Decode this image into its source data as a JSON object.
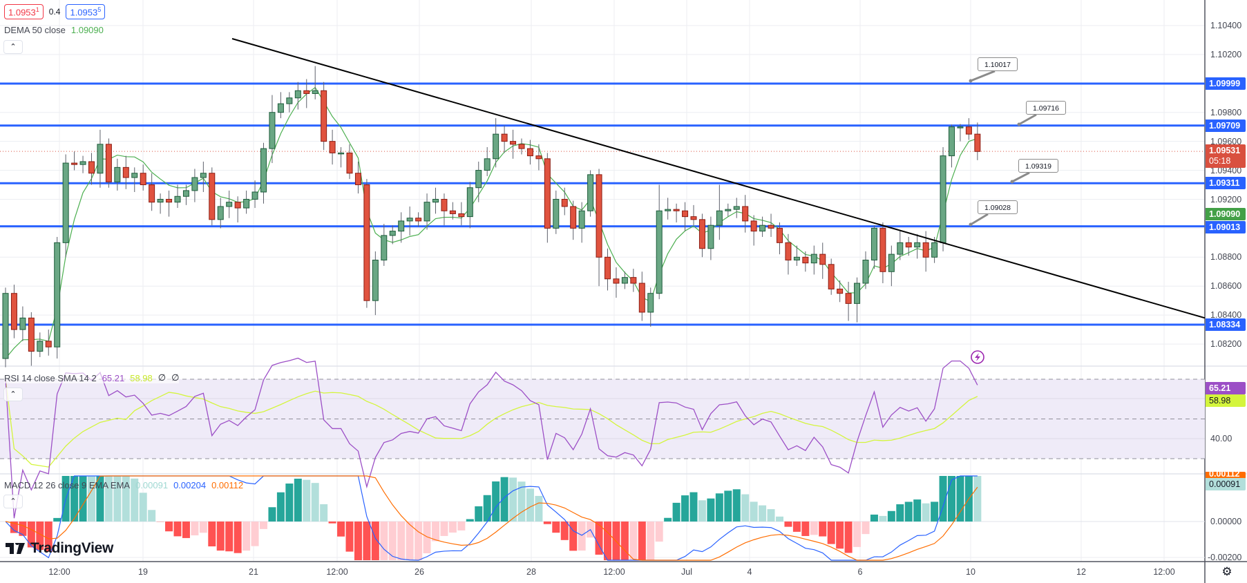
{
  "header": {
    "bid": {
      "main": "1.0953",
      "pip": "1"
    },
    "spread": "0.4",
    "ask": {
      "main": "1.0953",
      "pip": "5"
    },
    "dema_label": "DEMA 50 close",
    "dema_value": "1.09090"
  },
  "rsi_legend": {
    "label": "RSI 14 close SMA 14 2",
    "rsi": "65.21",
    "sma": "58.98",
    "extra1": "∅",
    "extra2": "∅"
  },
  "macd_legend": {
    "label": "MACD 12 26 close 9 EMA EMA",
    "hist": "0.00091",
    "macd": "0.00204",
    "signal": "0.00112"
  },
  "price_axis": [
    "1.10400",
    "1.10200",
    "1.09800",
    "1.09600",
    "1.09400",
    "1.09200",
    "1.08800",
    "1.08600",
    "1.08400",
    "1.08200"
  ],
  "price_badges": {
    "r1": "1.09999",
    "r2": "1.09709",
    "last": "1.09531",
    "countdown": "05:18",
    "s1": "1.09311",
    "dema": "1.09090",
    "s2": "1.09013",
    "s3": "1.08334"
  },
  "rsi_axis": {
    "level": "40.00",
    "rsi_badge": "65.21",
    "sma_badge": "58.98"
  },
  "macd_axis": {
    "signal_badge": "0.00112",
    "hist_badge": "0.00091",
    "zero": "0.00000",
    "low": "-0.00200"
  },
  "time_axis": [
    "12:00",
    "19",
    "21",
    "12:00",
    "26",
    "28",
    "12:00",
    "Jul",
    "4",
    "6",
    "10",
    "12",
    "12:00"
  ],
  "callouts": [
    "1.10017",
    "1.09716",
    "1.09319",
    "1.09028"
  ],
  "brand": "TradingView",
  "colors": {
    "up": "#6aa784",
    "up_border": "#1d5b3a",
    "down": "#e0533f",
    "down_border": "#8b1c12",
    "level": "#2962ff",
    "trend": "#000000",
    "dema": "#4caf50",
    "rsi": "#9c4fc6",
    "rsi_sma": "#d4f53c",
    "macd": "#2962ff",
    "signal": "#ff6d00",
    "hist_up_strong": "#26a69a",
    "hist_up_weak": "#b2dfdb",
    "hist_dn_strong": "#ff5252",
    "hist_dn_weak": "#ffcdd2",
    "last": "#d9503f"
  },
  "chart_data": {
    "type": "candlestick",
    "symbol_timeframe": "4h",
    "first_open": 1.081,
    "closes": [
      1.0855,
      1.083,
      1.0838,
      1.0815,
      1.0822,
      1.0818,
      1.089,
      1.0945,
      1.0944,
      1.0946,
      1.0938,
      1.0958,
      1.0932,
      1.0942,
      1.0935,
      1.0938,
      1.093,
      1.0918,
      1.092,
      1.0918,
      1.0922,
      1.0926,
      1.0935,
      1.0938,
      1.0906,
      1.0915,
      1.0918,
      1.0914,
      1.092,
      1.0925,
      1.0955,
      1.098,
      1.0986,
      1.099,
      1.0995,
      1.0993,
      1.0995,
      1.096,
      1.0952,
      1.0952,
      1.0938,
      1.093,
      1.085,
      1.0878,
      1.0895,
      1.0898,
      1.0905,
      1.0907,
      1.0905,
      1.0918,
      1.092,
      1.0912,
      1.091,
      1.0908,
      1.0928,
      1.094,
      1.0948,
      1.0965,
      1.096,
      1.0958,
      1.0955,
      1.095,
      1.0948,
      1.09,
      1.092,
      1.0915,
      1.09,
      1.0912,
      1.0937,
      1.088,
      1.0865,
      1.0862,
      1.0866,
      1.0862,
      1.0842,
      1.0855,
      1.0912,
      1.0913,
      1.0912,
      1.0908,
      1.0906,
      1.0886,
      1.0902,
      1.0912,
      1.0913,
      1.0915,
      1.0905,
      1.0898,
      1.0902,
      1.09,
      1.089,
      1.0878,
      1.088,
      1.0876,
      1.0882,
      1.0875,
      1.0858,
      1.0855,
      1.0848,
      1.0862,
      1.0878,
      1.09,
      1.087,
      1.0882,
      1.089,
      1.0887,
      1.089,
      1.088,
      1.089,
      1.095,
      1.097,
      1.097,
      1.0965,
      1.0953
    ],
    "high_overrides": {
      "11": 1.0968,
      "31": 1.0992,
      "36": 1.1012,
      "57": 1.0976,
      "68": 1.094,
      "76": 1.093,
      "83": 1.093,
      "101": 1.0902,
      "110": 1.09716,
      "111": 1.0972
    },
    "low_overrides": {
      "0": 1.0804,
      "42": 1.0845,
      "74": 1.0836,
      "98": 1.0836,
      "99": 1.0835,
      "69": 1.086
    },
    "levels": [
      1.09999,
      1.09709,
      1.09311,
      1.09013,
      1.08334
    ],
    "trendline": [
      [
        1.1032,
        0
      ],
      [
        1.0838,
        1
      ]
    ],
    "last_price": 1.09531,
    "price_range": [
      1.0805,
      1.105
    ],
    "rsi_range": [
      0,
      100
    ],
    "rsi_bands": [
      70,
      50,
      30
    ]
  }
}
